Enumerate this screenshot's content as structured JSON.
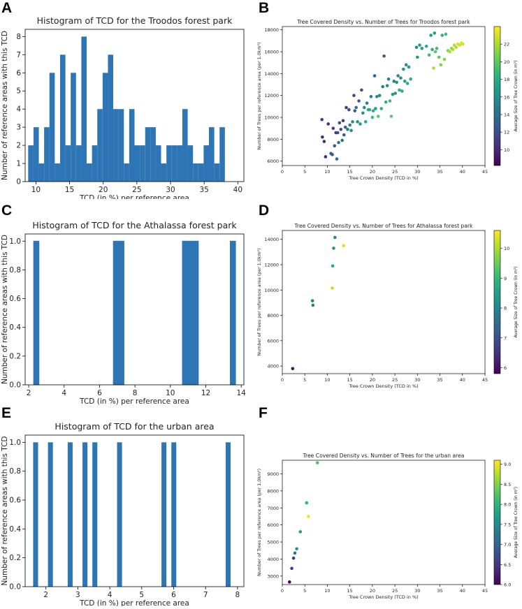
{
  "colors": {
    "bar": "#2e75b6",
    "axis": "#000000"
  },
  "chart_data": [
    {
      "id": "A",
      "type": "bar",
      "panel_label": "A",
      "title": "Histogram of TCD for the Troodos forest park",
      "xlabel": "TCD (in %) per reference area",
      "ylabel": "Number of reference areas with this TCD",
      "xlim": [
        8.4,
        40.9
      ],
      "ylim": [
        0,
        8.4
      ],
      "xticks": [
        10,
        15,
        20,
        25,
        30,
        35,
        40
      ],
      "yticks": [
        0,
        1,
        2,
        3,
        4,
        5,
        6,
        7,
        8
      ],
      "bin_start": 8.85,
      "bin_width": 0.79,
      "values": [
        2,
        3,
        1,
        3,
        6,
        1,
        7,
        2,
        6,
        2,
        8,
        1,
        2,
        4,
        6,
        7,
        4,
        4,
        1,
        4,
        2,
        2,
        3,
        3,
        2,
        1,
        2,
        2,
        2,
        4,
        2,
        1,
        1,
        2,
        3,
        1,
        3
      ],
      "outline": false
    },
    {
      "id": "B",
      "type": "scatter",
      "panel_label": "B",
      "title": "Tree Covered Density vs. Number of Trees for Troodos forest park",
      "xlabel": "Tree Crown Density (TCD in %)",
      "ylabel": "Number of Trees per reference area (per 1.0km²)",
      "colorbar_label": "Average Size of Tree Crown (in m²)",
      "xlim": [
        0,
        45
      ],
      "ylim": [
        5600,
        18300
      ],
      "xticks": [
        0,
        5,
        10,
        15,
        20,
        25,
        30,
        35,
        40,
        45
      ],
      "yticks": [
        6000,
        8000,
        10000,
        12000,
        14000,
        16000,
        18000
      ],
      "clim": [
        8.2,
        24
      ],
      "cticks": [
        10,
        12,
        14,
        16,
        18,
        20,
        22
      ],
      "points": [
        [
          8.8,
          9800,
          11
        ],
        [
          8.9,
          8200,
          10
        ],
        [
          9.3,
          7800,
          10
        ],
        [
          9.6,
          6400,
          10
        ],
        [
          10.2,
          9400,
          10.5
        ],
        [
          10.8,
          6700,
          13
        ],
        [
          11.1,
          6600,
          13
        ],
        [
          11.3,
          9000,
          11
        ],
        [
          11.6,
          7400,
          13
        ],
        [
          11.9,
          8600,
          11
        ],
        [
          12.1,
          6200,
          14
        ],
        [
          12.3,
          8600,
          12
        ],
        [
          12.5,
          7700,
          14
        ],
        [
          12.7,
          9500,
          12
        ],
        [
          13,
          8900,
          12
        ],
        [
          13.3,
          7900,
          14
        ],
        [
          13.5,
          9700,
          11
        ],
        [
          13.7,
          8400,
          13
        ],
        [
          14,
          9100,
          13
        ],
        [
          14.2,
          10900,
          11
        ],
        [
          14.5,
          8900,
          15
        ],
        [
          14.8,
          10700,
          12
        ],
        [
          15,
          9300,
          15
        ],
        [
          15.3,
          8800,
          16
        ],
        [
          15.6,
          9600,
          16
        ],
        [
          15.9,
          12000,
          12
        ],
        [
          16.1,
          10600,
          13
        ],
        [
          16.4,
          10900,
          14
        ],
        [
          16.7,
          9600,
          16
        ],
        [
          17,
          11500,
          13
        ],
        [
          17.3,
          9400,
          17
        ],
        [
          17.6,
          12500,
          12
        ],
        [
          17.9,
          10400,
          16
        ],
        [
          18.2,
          10900,
          16
        ],
        [
          18.5,
          9600,
          18
        ],
        [
          18.8,
          11300,
          15
        ],
        [
          19.1,
          10700,
          17
        ],
        [
          19.4,
          10700,
          18
        ],
        [
          19.7,
          11900,
          15
        ],
        [
          20,
          10000,
          19
        ],
        [
          20.2,
          10600,
          18
        ],
        [
          20.5,
          13800,
          13
        ],
        [
          20.7,
          10800,
          17
        ],
        [
          21,
          11900,
          16
        ],
        [
          21.3,
          10100,
          20
        ],
        [
          21.6,
          12000,
          16
        ],
        [
          22,
          10800,
          18
        ],
        [
          22.3,
          12800,
          15
        ],
        [
          22.6,
          15600,
          13
        ],
        [
          23,
          11400,
          18
        ],
        [
          23.3,
          12900,
          16
        ],
        [
          23.6,
          13500,
          15
        ],
        [
          23.9,
          11500,
          19
        ],
        [
          24.2,
          10100,
          20
        ],
        [
          24.5,
          12100,
          17
        ],
        [
          24.8,
          13300,
          15
        ],
        [
          25.1,
          12200,
          17
        ],
        [
          25.4,
          13200,
          16
        ],
        [
          25.7,
          13800,
          16
        ],
        [
          26,
          12500,
          18
        ],
        [
          26.3,
          13600,
          16
        ],
        [
          26.6,
          12400,
          18
        ],
        [
          26.9,
          14400,
          16
        ],
        [
          27.2,
          13300,
          17
        ],
        [
          27.5,
          14800,
          16
        ],
        [
          27.8,
          13100,
          18
        ],
        [
          28.1,
          14600,
          17
        ],
        [
          28.5,
          13500,
          18
        ],
        [
          29.8,
          16400,
          16
        ],
        [
          30,
          15500,
          17
        ],
        [
          30.5,
          16600,
          17
        ],
        [
          31,
          16300,
          17
        ],
        [
          32,
          16500,
          18
        ],
        [
          32.6,
          15700,
          19
        ],
        [
          33,
          17500,
          17
        ],
        [
          33.3,
          16200,
          18
        ],
        [
          33.6,
          14500,
          22
        ],
        [
          33.8,
          17700,
          17
        ],
        [
          34,
          16000,
          20
        ],
        [
          34.3,
          16300,
          19
        ],
        [
          34.8,
          15500,
          20
        ],
        [
          35.2,
          14800,
          21
        ],
        [
          35.5,
          17500,
          18
        ],
        [
          36,
          15300,
          21
        ],
        [
          36.3,
          17600,
          19
        ],
        [
          36.8,
          16100,
          21
        ],
        [
          37.2,
          16000,
          22
        ],
        [
          37.6,
          16300,
          21
        ],
        [
          37.9,
          16200,
          22
        ],
        [
          38.2,
          16600,
          22
        ],
        [
          38.6,
          16400,
          22
        ],
        [
          39,
          16700,
          23
        ],
        [
          39.4,
          16600,
          23
        ],
        [
          39.8,
          16800,
          23
        ],
        [
          40.1,
          16700,
          23
        ]
      ]
    },
    {
      "id": "C",
      "type": "bar",
      "panel_label": "C",
      "title": "Histogram of TCD for the Athalassa forest park",
      "xlabel": "TCD (in %) per reference area",
      "ylabel": "Number of reference areas with this TCD",
      "xlim": [
        1.8,
        14.15
      ],
      "ylim": [
        0,
        1.05
      ],
      "xticks": [
        2,
        4,
        6,
        8,
        10,
        12,
        14
      ],
      "yticks": [
        0,
        0.2,
        0.4,
        0.6,
        0.8,
        1.0
      ],
      "bin_start": 2.28,
      "bin_width": 0.3,
      "values": [
        1,
        0,
        0,
        0,
        0,
        0,
        0,
        0,
        0,
        0,
        0,
        0,
        0,
        0,
        0,
        1,
        1,
        0,
        0,
        0,
        0,
        0,
        0,
        0,
        0,
        0,
        0,
        0,
        1,
        1,
        1,
        0,
        0,
        0,
        0,
        0,
        0,
        1
      ],
      "outline": true
    },
    {
      "id": "D",
      "type": "scatter",
      "panel_label": "D",
      "title": "Tree Covered Density vs. Number of Trees for Athalassa forest park",
      "xlabel": "Tree Crown Density (TCD in %)",
      "ylabel": "Number of Trees per reference area (per 1.0km²)",
      "colorbar_label": "Average Size of Tree Crown (in m²)",
      "xlim": [
        0,
        45
      ],
      "ylim": [
        3400,
        14700
      ],
      "xticks": [
        0,
        5,
        10,
        15,
        20,
        25,
        30,
        35,
        40,
        45
      ],
      "yticks": [
        4000,
        6000,
        8000,
        10000,
        12000,
        14000
      ],
      "clim": [
        5.8,
        10.6
      ],
      "cticks": [
        6,
        7,
        8,
        9,
        10
      ],
      "points": [
        [
          2.3,
          3800,
          6
        ],
        [
          6.7,
          9150,
          7.9
        ],
        [
          6.8,
          8800,
          7.9
        ],
        [
          11.1,
          10150,
          10.1
        ],
        [
          11.2,
          11900,
          8.7
        ],
        [
          11.4,
          13300,
          8.2
        ],
        [
          11.7,
          14150,
          8.1
        ],
        [
          13.6,
          13500,
          10.3
        ]
      ]
    },
    {
      "id": "E",
      "type": "bar",
      "panel_label": "E",
      "title": "Histogram of TCD for the urban area",
      "xlabel": "TCD (in %) per reference area",
      "ylabel": "Number of reference areas with this TCD",
      "xlim": [
        1.35,
        8.2
      ],
      "ylim": [
        0,
        1.05
      ],
      "xticks": [
        2,
        3,
        4,
        5,
        6,
        7,
        8
      ],
      "yticks": [
        0,
        0.2,
        0.4,
        0.6,
        0.8,
        1.0
      ],
      "bin_start": 1.6,
      "bin_width": 0.1546,
      "values": [
        1,
        0,
        0,
        1,
        0,
        0,
        0,
        1,
        0,
        0,
        1,
        0,
        1,
        0,
        0,
        0,
        0,
        1,
        0,
        0,
        0,
        0,
        0,
        0,
        0,
        0,
        1,
        0,
        1,
        0,
        0,
        0,
        0,
        0,
        0,
        0,
        0,
        0,
        0,
        1
      ],
      "outline": false
    },
    {
      "id": "F",
      "type": "scatter",
      "panel_label": "F",
      "title": "Tree Covered Density vs. Number of Trees for the urban area",
      "xlabel": "Tree Crown Density (TCD in %)",
      "ylabel": "Number of Trees per reference area (per 1.0km²)",
      "colorbar_label": "Average Size of Tree Crown (in m²)",
      "xlim": [
        0,
        45
      ],
      "ylim": [
        2500,
        9800
      ],
      "xticks": [
        0,
        5,
        10,
        15,
        20,
        25,
        30,
        35,
        40,
        45
      ],
      "yticks": [
        3000,
        4000,
        5000,
        6000,
        7000,
        8000,
        9000
      ],
      "clim": [
        6.0,
        9.1
      ],
      "cticks": [
        6.0,
        6.5,
        7.0,
        7.5,
        8.0,
        8.5,
        9.0
      ],
      "points": [
        [
          1.6,
          2650,
          6.0
        ],
        [
          2.1,
          3450,
          6.5
        ],
        [
          2.5,
          4050,
          6.5
        ],
        [
          2.8,
          4350,
          7.2
        ],
        [
          3.2,
          4600,
          7.6
        ],
        [
          4.0,
          5600,
          7.7
        ],
        [
          5.4,
          7300,
          8.0
        ],
        [
          5.8,
          6500,
          9.0
        ],
        [
          7.8,
          9650,
          8.2
        ]
      ]
    }
  ]
}
